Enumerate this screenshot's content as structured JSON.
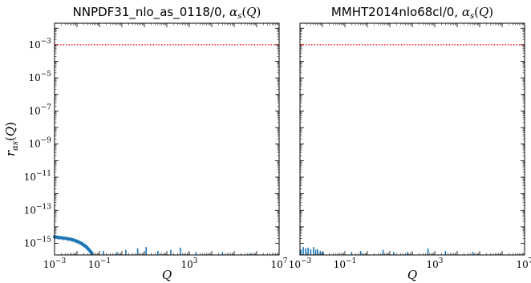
{
  "chart_data": [
    {
      "type": "line",
      "title": "NNPDF31_nlo_as_0118/0, α_s(Q)",
      "xlabel": "Q",
      "ylabel": "r_αs(Q)",
      "xscale": "log",
      "yscale": "log",
      "xlim": [
        0.001,
        10000000
      ],
      "ylim": [
        2e-16,
        0.02
      ],
      "xticks": [
        "10^-3",
        "10^-1",
        "10^3",
        "10^7"
      ],
      "yticks": [
        "10^-15",
        "10^-13",
        "10^-11",
        "10^-9",
        "10^-7",
        "10^-5",
        "10^-3"
      ],
      "threshold": {
        "value": 0.001,
        "color": "#ff0000",
        "style": "dotted"
      },
      "series": [
        {
          "color": "#1f77b4",
          "x": [
            0.001,
            0.0015,
            0.0025,
            0.004,
            0.006,
            0.008,
            0.01,
            0.013,
            0.016,
            0.02,
            0.025,
            0.03,
            0.035,
            0.04,
            0.045
          ],
          "y": [
            2.5e-15,
            2.3e-15,
            2.1e-15,
            1.9e-15,
            1.7e-15,
            1.5e-15,
            1.35e-15,
            1.15e-15,
            1e-15,
            8e-16,
            6.5e-16,
            5e-16,
            4e-16,
            3.2e-16,
            2.6e-16
          ]
        },
        {
          "color": "#1f77b4",
          "style": "spikes",
          "x": [
            0.05,
            0.15,
            0.6,
            1.5,
            5,
            12,
            40,
            150,
            400,
            2000,
            30000,
            500000
          ],
          "y": [
            3e-16,
            3.5e-16,
            3e-16,
            4e-16,
            5e-16,
            6e-16,
            3.5e-16,
            4e-16,
            5.5e-16,
            3e-16,
            3e-16,
            2.5e-16
          ]
        }
      ]
    },
    {
      "type": "line",
      "title": "MMHT2014nlo68cl/0, α_s(Q)",
      "xlabel": "Q",
      "ylabel": "",
      "xscale": "log",
      "yscale": "log",
      "xlim": [
        0.001,
        10000000
      ],
      "ylim": [
        2e-16,
        0.02
      ],
      "xticks": [
        "10^-3",
        "10^-1",
        "10^3",
        "10^7"
      ],
      "threshold": {
        "value": 0.001,
        "color": "#ff0000",
        "style": "dotted"
      },
      "series": [
        {
          "color": "#1f77b4",
          "style": "spikes",
          "x": [
            0.0011,
            0.0014,
            0.0018,
            0.0023,
            0.003,
            0.004,
            0.005,
            0.006,
            0.008,
            0.011,
            0.2,
            0.5,
            5,
            15,
            60,
            500,
            3000,
            50000
          ],
          "y": [
            4e-16,
            6e-16,
            5e-16,
            5.5e-16,
            4.5e-16,
            6e-16,
            4e-16,
            4.5e-16,
            3.5e-16,
            3e-16,
            3e-16,
            3.5e-16,
            4e-16,
            3e-16,
            3e-16,
            5e-16,
            3.5e-16,
            3e-16
          ]
        }
      ]
    }
  ]
}
